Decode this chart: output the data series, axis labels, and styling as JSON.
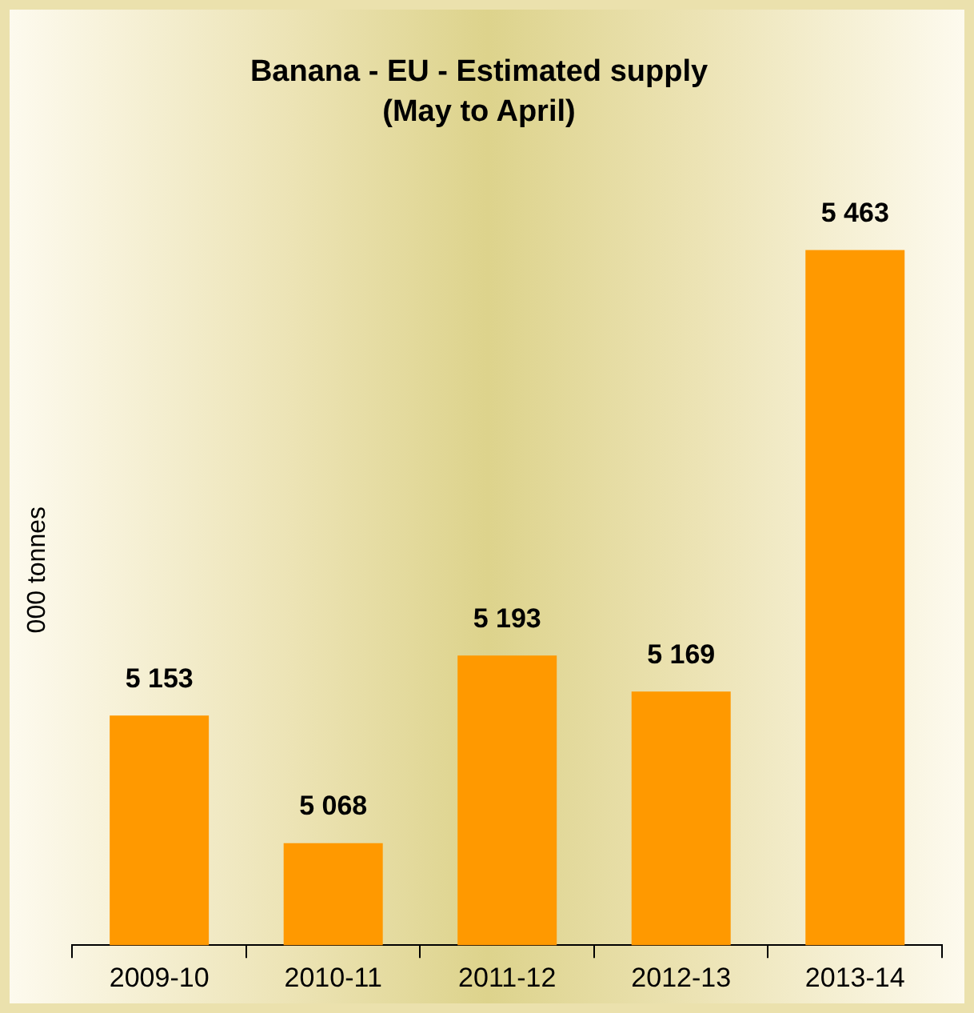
{
  "chart_data": {
    "type": "bar",
    "title": "Banana - EU - Estimated supply",
    "subtitle": "(May to April)",
    "ylabel": "000 tonnes",
    "categories": [
      "2009-10",
      "2010-11",
      "2011-12",
      "2012-13",
      "2013-14"
    ],
    "values": [
      5153,
      5068,
      5193,
      5169,
      5463
    ],
    "color": "#ff9900",
    "value_labels": [
      "5 153",
      "5 068",
      "5 193",
      "5 169",
      "5 463"
    ],
    "legend": false,
    "grid": false
  }
}
